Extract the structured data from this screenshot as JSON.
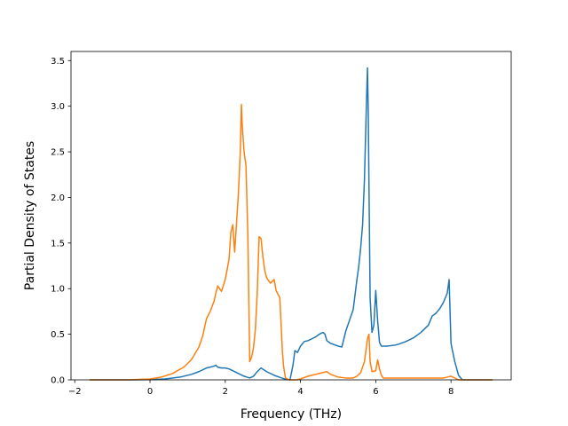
{
  "chart_data": {
    "type": "line",
    "title": "",
    "xlabel": "Frequency (THz)",
    "ylabel": "Partial Density of States",
    "xlim": [
      -2.1,
      9.6
    ],
    "ylim": [
      0,
      3.6
    ],
    "grid": false,
    "xticks": [
      -2,
      0,
      2,
      4,
      6,
      8
    ],
    "yticks": [
      0.0,
      0.5,
      1.0,
      1.5,
      2.0,
      2.5,
      3.0,
      3.5
    ],
    "xtick_labels": [
      "−2",
      "0",
      "2",
      "4",
      "6",
      "8"
    ],
    "ytick_labels": [
      "0.0",
      "0.5",
      "1.0",
      "1.5",
      "2.0",
      "2.5",
      "3.0",
      "3.5"
    ],
    "series": [
      {
        "color": "#1f77b4",
        "x": [
          -1.6,
          -0.5,
          0.0,
          0.4,
          0.8,
          1.1,
          1.3,
          1.5,
          1.6,
          1.7,
          1.75,
          1.8,
          1.9,
          2.0,
          2.1,
          2.2,
          2.3,
          2.5,
          2.65,
          2.75,
          2.85,
          2.95,
          3.1,
          3.3,
          3.5,
          3.62,
          3.72,
          3.8,
          3.85,
          3.92,
          4.0,
          4.1,
          4.2,
          4.3,
          4.4,
          4.5,
          4.6,
          4.65,
          4.7,
          4.8,
          5.0,
          5.1,
          5.2,
          5.3,
          5.4,
          5.5,
          5.55,
          5.6,
          5.65,
          5.7,
          5.75,
          5.78,
          5.8,
          5.85,
          5.9,
          5.95,
          6.0,
          6.05,
          6.1,
          6.15,
          6.2,
          6.3,
          6.5,
          6.6,
          6.8,
          7.0,
          7.2,
          7.4,
          7.5,
          7.6,
          7.7,
          7.8,
          7.9,
          7.95,
          8.0,
          8.1,
          8.2,
          8.3,
          9.1
        ],
        "values": [
          0,
          0,
          0.002,
          0.01,
          0.03,
          0.06,
          0.09,
          0.13,
          0.14,
          0.15,
          0.16,
          0.14,
          0.13,
          0.13,
          0.12,
          0.1,
          0.08,
          0.04,
          0.02,
          0.04,
          0.09,
          0.13,
          0.09,
          0.05,
          0.02,
          0.005,
          0,
          0.16,
          0.32,
          0.3,
          0.37,
          0.42,
          0.43,
          0.45,
          0.47,
          0.5,
          0.52,
          0.5,
          0.43,
          0.4,
          0.37,
          0.36,
          0.53,
          0.65,
          0.77,
          1.1,
          1.25,
          1.45,
          1.7,
          2.2,
          3.0,
          3.42,
          2.95,
          0.9,
          0.52,
          0.6,
          0.98,
          0.65,
          0.41,
          0.37,
          0.37,
          0.37,
          0.38,
          0.39,
          0.42,
          0.46,
          0.52,
          0.6,
          0.7,
          0.73,
          0.78,
          0.85,
          0.95,
          1.1,
          0.4,
          0.2,
          0.05,
          0,
          0
        ]
      },
      {
        "color": "#ff7f0e",
        "x": [
          -1.6,
          -0.6,
          0.0,
          0.3,
          0.6,
          0.9,
          1.1,
          1.3,
          1.4,
          1.5,
          1.6,
          1.7,
          1.75,
          1.8,
          1.9,
          2.0,
          2.1,
          2.15,
          2.2,
          2.25,
          2.3,
          2.35,
          2.4,
          2.43,
          2.45,
          2.5,
          2.55,
          2.6,
          2.65,
          2.7,
          2.75,
          2.8,
          2.85,
          2.9,
          2.95,
          3.0,
          3.05,
          3.1,
          3.2,
          3.3,
          3.35,
          3.45,
          3.52,
          3.55,
          3.6,
          3.7,
          3.8,
          3.9,
          4.0,
          4.2,
          4.4,
          4.6,
          4.7,
          4.8,
          5.0,
          5.2,
          5.4,
          5.5,
          5.6,
          5.7,
          5.78,
          5.82,
          5.85,
          5.9,
          6.0,
          6.05,
          6.1,
          6.15,
          6.2,
          6.3,
          6.5,
          7.0,
          7.5,
          7.8,
          7.9,
          8.0,
          8.2,
          9.1
        ],
        "values": [
          0,
          0,
          0.01,
          0.03,
          0.07,
          0.14,
          0.22,
          0.36,
          0.48,
          0.67,
          0.75,
          0.86,
          0.95,
          1.03,
          0.97,
          1.1,
          1.32,
          1.62,
          1.7,
          1.4,
          1.72,
          2.05,
          2.5,
          3.02,
          2.8,
          2.5,
          2.35,
          1.6,
          0.2,
          0.25,
          0.35,
          0.55,
          0.95,
          1.57,
          1.55,
          1.35,
          1.2,
          1.12,
          1.06,
          1.1,
          0.98,
          0.9,
          0.3,
          0.15,
          0.02,
          0,
          0,
          0,
          0.01,
          0.04,
          0.06,
          0.08,
          0.09,
          0.06,
          0.03,
          0.02,
          0.02,
          0.04,
          0.08,
          0.2,
          0.45,
          0.5,
          0.2,
          0.09,
          0.1,
          0.22,
          0.12,
          0.05,
          0.02,
          0.02,
          0.02,
          0.02,
          0.02,
          0.02,
          0.03,
          0.04,
          0,
          0
        ]
      }
    ]
  }
}
